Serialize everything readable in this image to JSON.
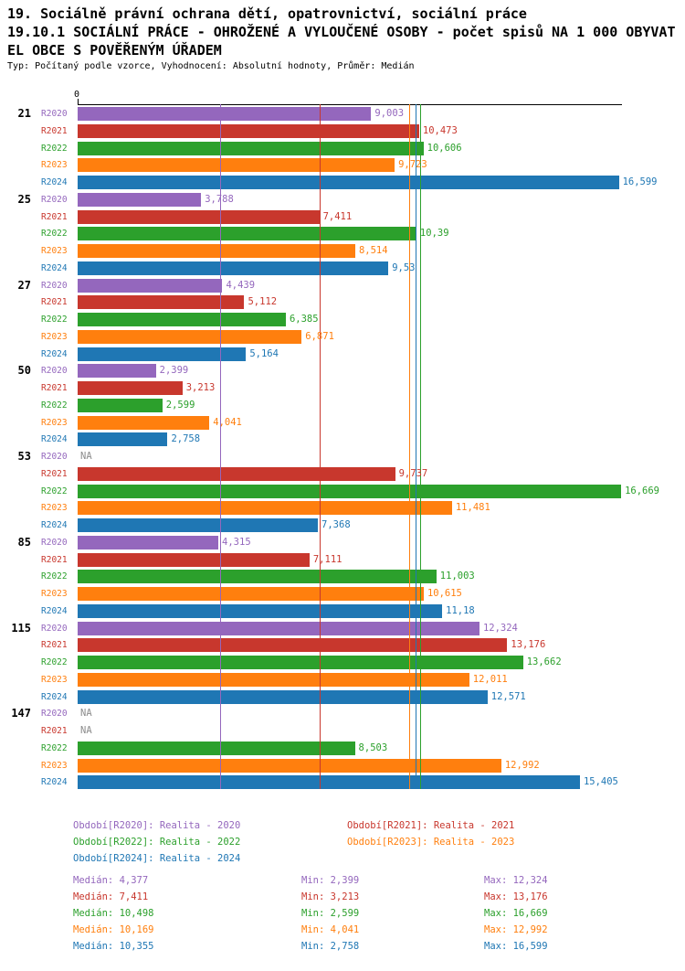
{
  "title": {
    "line1": "19. Sociálně právní ochrana dětí, opatrovnictví, sociální práce",
    "line2": "19.10.1 SOCIÁLNÍ PRÁCE - OHROŽENÉ A VYLOUČENÉ OSOBY - počet spisů NA 1 000 OBYVAT",
    "line3": "EL OBCE S POVĚŘENÝM ÚŘADEM",
    "subtitle": "Typ: Počítaný podle vzorce, Vyhodnocení: Absolutní hodnoty, Průměr: Medián"
  },
  "axis": {
    "zero_label": "0"
  },
  "na_label": "NA",
  "colors": {
    "r2020": "#9467bd",
    "r2021": "#c8372d",
    "r2022": "#2ca02c",
    "r2023": "#ff7f0e",
    "r2024": "#1f77b4",
    "na_text": "#8c8c8c",
    "axis": "#000000"
  },
  "chart_data": {
    "type": "bar",
    "orientation": "horizontal",
    "categories": [
      "21",
      "25",
      "27",
      "50",
      "53",
      "85",
      "115",
      "147"
    ],
    "xlim": [
      0,
      16.9
    ],
    "value_format": "czech-decimal-comma",
    "series": [
      {
        "name": "R2020",
        "color": "#9467bd",
        "values": [
          9.003,
          3.788,
          4.439,
          2.399,
          null,
          4.315,
          12.324,
          null
        ],
        "labels": [
          "9,003",
          "3,788",
          "4,439",
          "2,399",
          "NA",
          "4,315",
          "12,324",
          "NA"
        ],
        "median": 4.377
      },
      {
        "name": "R2021",
        "color": "#c8372d",
        "values": [
          10.473,
          7.411,
          5.112,
          3.213,
          9.737,
          7.111,
          13.176,
          null
        ],
        "labels": [
          "10,473",
          "7,411",
          "5,112",
          "3,213",
          "9,737",
          "7,111",
          "13,176",
          "NA"
        ],
        "median": 7.411
      },
      {
        "name": "R2022",
        "color": "#2ca02c",
        "values": [
          10.606,
          10.39,
          6.385,
          2.599,
          16.669,
          11.003,
          13.662,
          8.503
        ],
        "labels": [
          "10,606",
          "10,39",
          "6,385",
          "2,599",
          "16,669",
          "11,003",
          "13,662",
          "8,503"
        ],
        "median": 10.498
      },
      {
        "name": "R2023",
        "color": "#ff7f0e",
        "values": [
          9.723,
          8.514,
          6.871,
          4.041,
          11.481,
          10.615,
          12.011,
          12.992
        ],
        "labels": [
          "9,723",
          "8,514",
          "6,871",
          "4,041",
          "11,481",
          "10,615",
          "12,011",
          "12,992"
        ],
        "median": 10.169
      },
      {
        "name": "R2024",
        "color": "#1f77b4",
        "values": [
          16.599,
          9.53,
          5.164,
          2.758,
          7.368,
          11.18,
          12.571,
          15.405
        ],
        "labels": [
          "16,599",
          "9,53",
          "5,164",
          "2,758",
          "7,368",
          "11,18",
          "12,571",
          "15,405"
        ],
        "median": 10.355
      }
    ]
  },
  "legend": {
    "items": [
      {
        "series": "R2020",
        "label": "Období[R2020]: Realita - 2020",
        "color": "#9467bd"
      },
      {
        "series": "R2021",
        "label": "Období[R2021]: Realita - 2021",
        "color": "#c8372d"
      },
      {
        "series": "R2022",
        "label": "Období[R2022]: Realita - 2022",
        "color": "#2ca02c"
      },
      {
        "series": "R2023",
        "label": "Období[R2023]: Realita - 2023",
        "color": "#ff7f0e"
      },
      {
        "series": "R2024",
        "label": "Období[R2024]: Realita - 2024",
        "color": "#1f77b4"
      }
    ]
  },
  "stats": {
    "rows": [
      {
        "series": "R2020",
        "color": "#9467bd",
        "median": "Medián: 4,377",
        "min": "Min: 2,399",
        "max": "Max: 12,324"
      },
      {
        "series": "R2021",
        "color": "#c8372d",
        "median": "Medián: 7,411",
        "min": "Min: 3,213",
        "max": "Max: 13,176"
      },
      {
        "series": "R2022",
        "color": "#2ca02c",
        "median": "Medián: 10,498",
        "min": "Min: 2,599",
        "max": "Max: 16,669"
      },
      {
        "series": "R2023",
        "color": "#ff7f0e",
        "median": "Medián: 10,169",
        "min": "Min: 4,041",
        "max": "Max: 12,992"
      },
      {
        "series": "R2024",
        "color": "#1f77b4",
        "median": "Medián: 10,355",
        "min": "Min: 2,758",
        "max": "Max: 16,599"
      }
    ]
  }
}
